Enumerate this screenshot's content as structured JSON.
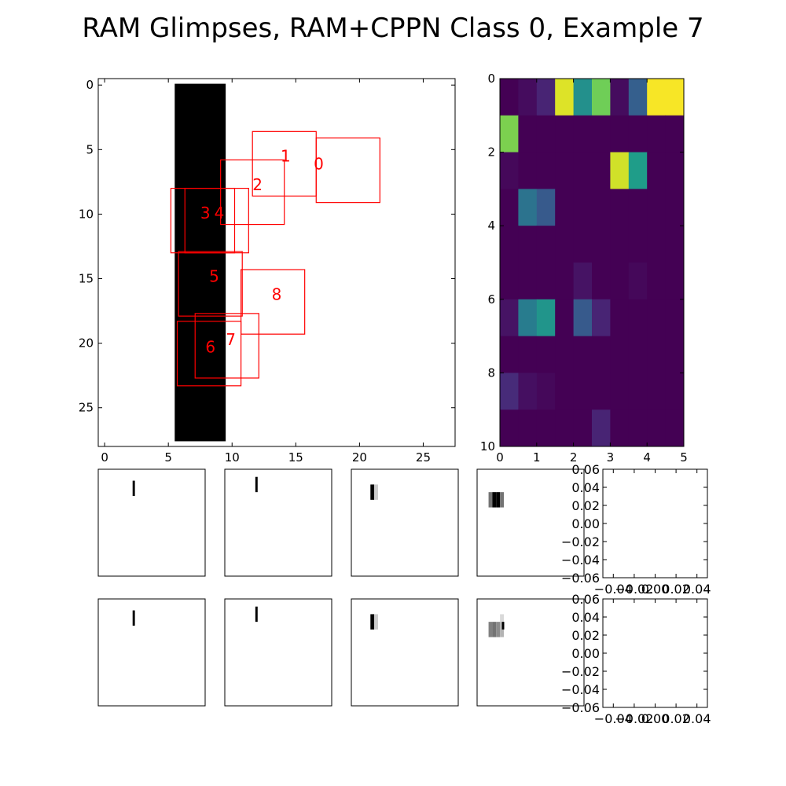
{
  "title": "RAM Glimpses, RAM+CPPN Class 0, Example 7",
  "chart_data": [
    {
      "type": "image",
      "panel": "input-image",
      "xlim": [
        -0.5,
        27.5
      ],
      "ylim": [
        28,
        -0.5
      ],
      "xticks": [
        0,
        5,
        10,
        15,
        20,
        25
      ],
      "yticks": [
        0,
        5,
        10,
        15,
        20,
        25
      ],
      "dark_region": {
        "cols": [
          5.5,
          9.5
        ],
        "rows": [
          -0.1,
          27.6
        ]
      },
      "glimpses": [
        {
          "label": "0",
          "x": 16.6,
          "y": 4.1,
          "w": 5,
          "h": 5,
          "label_x": 16.8,
          "label_y": 6.2
        },
        {
          "label": "1",
          "x": 11.6,
          "y": 3.6,
          "w": 5,
          "h": 5,
          "label_x": 14.2,
          "label_y": 5.6
        },
        {
          "label": "2",
          "x": 9.1,
          "y": 5.8,
          "w": 5,
          "h": 5,
          "label_x": 12.0,
          "label_y": 7.8
        },
        {
          "label": "3",
          "x": 5.2,
          "y": 8.0,
          "w": 5,
          "h": 5,
          "label_x": 7.9,
          "label_y": 10.0
        },
        {
          "label": "4",
          "x": 6.3,
          "y": 8.0,
          "w": 5,
          "h": 5,
          "label_x": 9.0,
          "label_y": 10.0
        },
        {
          "label": "5",
          "x": 5.8,
          "y": 12.9,
          "w": 5,
          "h": 5,
          "label_x": 8.6,
          "label_y": 14.9
        },
        {
          "label": "6",
          "x": 5.7,
          "y": 18.3,
          "w": 5,
          "h": 5,
          "label_x": 8.3,
          "label_y": 20.4
        },
        {
          "label": "7",
          "x": 7.1,
          "y": 17.7,
          "w": 5,
          "h": 5,
          "label_x": 9.9,
          "label_y": 19.8
        },
        {
          "label": "8",
          "x": 10.7,
          "y": 14.3,
          "w": 5,
          "h": 5,
          "label_x": 13.5,
          "label_y": 16.3
        }
      ]
    },
    {
      "type": "heatmap",
      "panel": "glimpse-heatmap",
      "xlim": [
        0,
        5
      ],
      "ylim": [
        10,
        0
      ],
      "xticks": [
        0,
        1,
        2,
        3,
        4,
        5
      ],
      "yticks": [
        0,
        2,
        4,
        6,
        8,
        10
      ],
      "colormap": "viridis",
      "values": [
        [
          0.0,
          0.03,
          0.1,
          0.95,
          0.5,
          0.78,
          0.03,
          0.3,
          0.99,
          0.99
        ],
        [
          0.8,
          0.0,
          0.0,
          0.0,
          0.0,
          0.0,
          0.0,
          0.0,
          0.0,
          0.0
        ],
        [
          0.02,
          0.0,
          0.0,
          0.0,
          0.0,
          0.0,
          0.93,
          0.55,
          0.0,
          0.0
        ],
        [
          0.0,
          0.38,
          0.28,
          0.0,
          0.0,
          0.0,
          0.0,
          0.0,
          0.0,
          0.0
        ],
        [
          0.0,
          0.0,
          0.0,
          0.0,
          0.0,
          0.0,
          0.0,
          0.0,
          0.0,
          0.0
        ],
        [
          0.0,
          0.0,
          0.0,
          0.0,
          0.05,
          0.0,
          0.0,
          0.02,
          0.0,
          0.0
        ],
        [
          0.05,
          0.42,
          0.52,
          0.0,
          0.28,
          0.1,
          0.0,
          0.0,
          0.0,
          0.0
        ],
        [
          0.0,
          0.0,
          0.0,
          0.0,
          0.0,
          0.0,
          0.0,
          0.0,
          0.0,
          0.0
        ],
        [
          0.12,
          0.04,
          0.02,
          0.0,
          0.0,
          0.0,
          0.0,
          0.0,
          0.0,
          0.0
        ],
        [
          0.0,
          0.0,
          0.0,
          0.0,
          0.0,
          0.1,
          0.0,
          0.0,
          0.0,
          0.0
        ]
      ]
    },
    {
      "type": "image",
      "panel": "glimpse-row-1",
      "glimpses": [
        {
          "cells": [
            {
              "c": 9,
              "r": 3,
              "w": 0.6,
              "h": 4,
              "v": 0.0
            }
          ]
        },
        {
          "cells": [
            {
              "c": 8,
              "r": 2,
              "w": 0.6,
              "h": 4,
              "v": 0.0
            }
          ]
        },
        {
          "cells": [
            {
              "c": 5,
              "r": 4,
              "w": 1,
              "h": 4,
              "v": 0.0
            },
            {
              "c": 6,
              "r": 4,
              "w": 1,
              "h": 4,
              "v": 0.8
            }
          ]
        },
        {
          "cells": [
            {
              "c": 3,
              "r": 6,
              "w": 1,
              "h": 4,
              "v": 0.45
            },
            {
              "c": 4,
              "r": 6,
              "w": 1,
              "h": 4,
              "v": 0.0
            },
            {
              "c": 5,
              "r": 6,
              "w": 1,
              "h": 4,
              "v": 0.0
            },
            {
              "c": 6,
              "r": 6,
              "w": 1,
              "h": 4,
              "v": 0.45
            }
          ]
        }
      ],
      "empty_axes": {
        "xticks": [
          "−0.04",
          "−0.02",
          "0.00",
          "0.02",
          "0.04"
        ],
        "yticks": [
          "0.06",
          "0.04",
          "0.02",
          "0.00",
          "−0.02",
          "−0.04",
          "−0.06"
        ]
      }
    },
    {
      "type": "image",
      "panel": "glimpse-row-2",
      "glimpses": [
        {
          "cells": [
            {
              "c": 9,
              "r": 3,
              "w": 0.6,
              "h": 4,
              "v": 0.0
            }
          ]
        },
        {
          "cells": [
            {
              "c": 8,
              "r": 2,
              "w": 0.6,
              "h": 4,
              "v": 0.0
            }
          ]
        },
        {
          "cells": [
            {
              "c": 5,
              "r": 4,
              "w": 1,
              "h": 4,
              "v": 0.0
            },
            {
              "c": 6,
              "r": 4,
              "w": 1,
              "h": 4,
              "v": 0.8
            }
          ]
        },
        {
          "cells": [
            {
              "c": 3,
              "r": 6,
              "w": 1,
              "h": 4,
              "v": 0.5
            },
            {
              "c": 4,
              "r": 6,
              "w": 1,
              "h": 4,
              "v": 0.45
            },
            {
              "c": 5,
              "r": 6,
              "w": 1,
              "h": 4,
              "v": 0.55
            },
            {
              "c": 6,
              "r": 6,
              "w": 1,
              "h": 4,
              "v": 0.7
            },
            {
              "c": 6,
              "r": 4,
              "w": 1,
              "h": 2,
              "v": 0.85
            },
            {
              "c": 6.5,
              "r": 6,
              "w": 0.6,
              "h": 2,
              "v": 0.0
            }
          ]
        }
      ],
      "empty_axes": {
        "xticks": [
          "−0.04",
          "−0.02",
          "0.00",
          "0.02",
          "0.04"
        ],
        "yticks": [
          "0.06",
          "0.04",
          "0.02",
          "0.00",
          "−0.02",
          "−0.04",
          "−0.06"
        ]
      }
    }
  ]
}
